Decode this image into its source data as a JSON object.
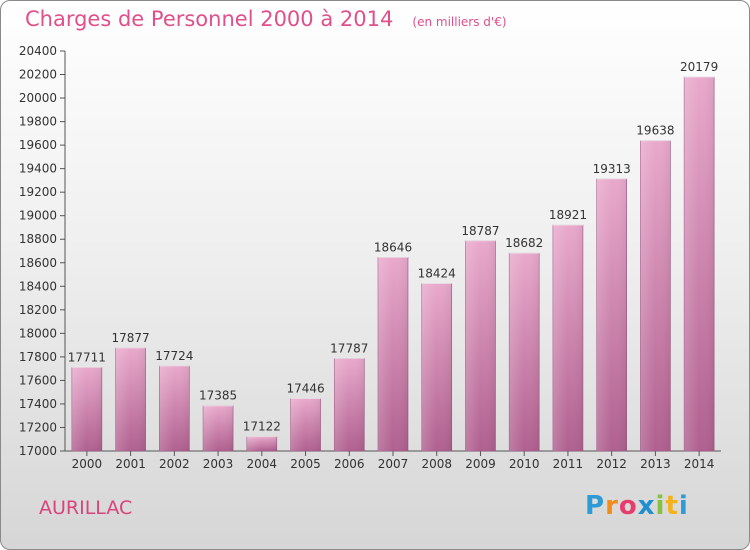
{
  "header": {
    "title": "Charges de Personnel 2000 à 2014",
    "subtitle": "(en milliers d'€)"
  },
  "footer": {
    "town": "AURILLAC",
    "logo_letters": [
      "P",
      "r",
      "o",
      "x",
      "i",
      "t",
      "i"
    ]
  },
  "colors": {
    "bar_top": "#e9a9cc",
    "bar_bottom": "#b0608f",
    "text": "#333333",
    "title": "#e0508a"
  },
  "chart_data": {
    "type": "bar",
    "title": "Charges de Personnel 2000 à 2014",
    "subtitle": "(en milliers d'€)",
    "xlabel": "",
    "ylabel": "",
    "categories": [
      "2000",
      "2001",
      "2002",
      "2003",
      "2004",
      "2005",
      "2006",
      "2007",
      "2008",
      "2009",
      "2010",
      "2011",
      "2012",
      "2013",
      "2014"
    ],
    "values": [
      17711,
      17877,
      17724,
      17385,
      17122,
      17446,
      17787,
      18646,
      18424,
      18787,
      18682,
      18921,
      19313,
      19638,
      20179
    ],
    "ylim": [
      17000,
      20400
    ],
    "yticks": [
      17000,
      17200,
      17400,
      17600,
      17800,
      18000,
      18200,
      18400,
      18600,
      18800,
      19000,
      19200,
      19400,
      19600,
      19800,
      20000,
      20200,
      20400
    ],
    "grid": false
  }
}
